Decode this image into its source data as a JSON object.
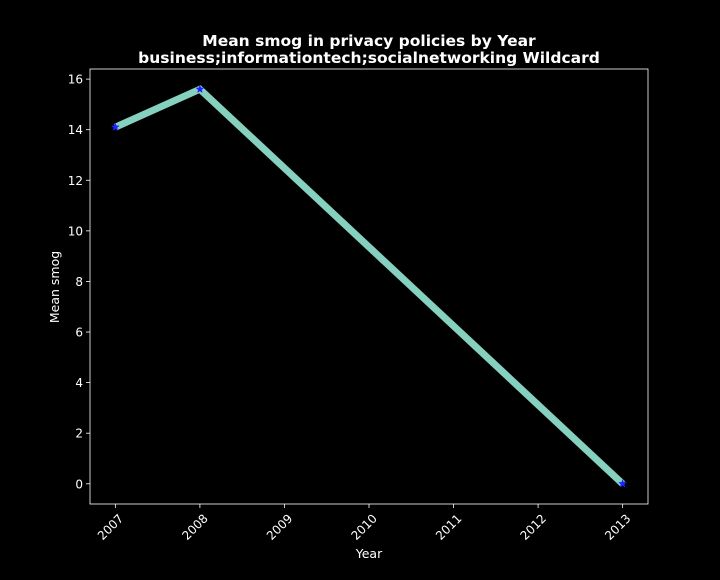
{
  "chart_data": {
    "type": "line",
    "title": "Mean smog in privacy policies by Year",
    "subtitle": "business;informationtech;socialnetworking Wildcard",
    "xlabel": "Year",
    "ylabel": "Mean smog",
    "x": [
      2007,
      2008,
      2013
    ],
    "series": [
      {
        "values": [
          14.1,
          15.6,
          0.0
        ],
        "line_color": "#86d0c0",
        "marker": "star",
        "marker_color": "#1f1fff"
      }
    ],
    "xticks": [
      "2007",
      "2008",
      "2009",
      "2010",
      "2011",
      "2012",
      "2013"
    ],
    "yticks": [
      "0",
      "2",
      "4",
      "6",
      "8",
      "10",
      "12",
      "14",
      "16"
    ],
    "xlim": [
      2006.7,
      2013.3
    ],
    "ylim": [
      -0.8,
      16.4
    ],
    "grid": false,
    "background_color": "#000000",
    "text_color": "#ffffff"
  }
}
